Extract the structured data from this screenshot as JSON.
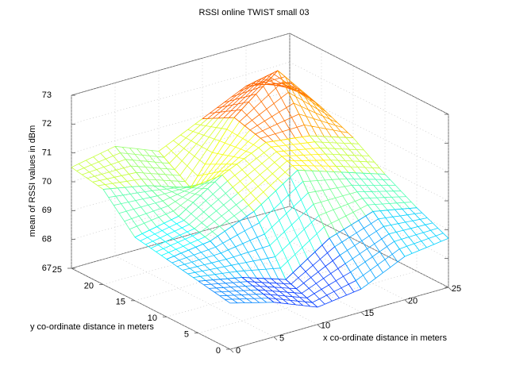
{
  "chart_data": {
    "type": "surface",
    "title": "RSSI online TWIST small 03",
    "xlabel": "x co-ordinate distance in meters",
    "ylabel": "y co-ordinate distance in meters",
    "zlabel": "mean of RSSI values in dBm",
    "x": [
      0,
      5,
      10,
      15,
      20,
      25
    ],
    "y": [
      0,
      5,
      10,
      15,
      20,
      25
    ],
    "z": [
      [
        68.6,
        68.2,
        67.6,
        67.8,
        68.5,
        68.7
      ],
      [
        68.8,
        68.5,
        68.0,
        69.0,
        69.5,
        69.2
      ],
      [
        69.0,
        69.2,
        69.8,
        70.8,
        70.3,
        69.8
      ],
      [
        69.2,
        69.5,
        70.5,
        71.2,
        71.0,
        70.5
      ],
      [
        70.3,
        70.0,
        69.5,
        71.5,
        72.7,
        71.0
      ],
      [
        70.5,
        70.8,
        70.2,
        70.9,
        71.6,
        71.3
      ]
    ],
    "xlim": [
      0,
      25
    ],
    "ylim": [
      0,
      25
    ],
    "zlim": [
      67,
      73
    ],
    "xticks": [
      0,
      5,
      10,
      15,
      20,
      25
    ],
    "yticks": [
      0,
      5,
      10,
      15,
      20,
      25
    ],
    "zticks": [
      67,
      68,
      69,
      70,
      71,
      72,
      73
    ],
    "colormap": "jet",
    "grid": true
  }
}
